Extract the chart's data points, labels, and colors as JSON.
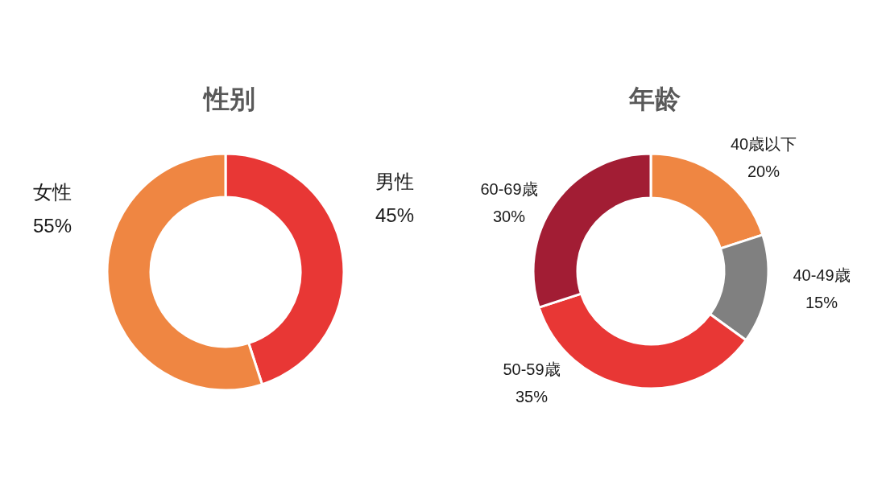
{
  "chart_data": [
    {
      "type": "donut",
      "title": "性别",
      "categories": [
        "男性",
        "女性"
      ],
      "values": [
        45,
        55
      ],
      "value_labels": [
        "45%",
        "55%"
      ],
      "colors": [
        "#e83735",
        "#ef8642"
      ],
      "legend": false
    },
    {
      "type": "donut",
      "title": "年龄",
      "categories": [
        "40歳以下",
        "40-49歳",
        "50-59歳",
        "60-69歳"
      ],
      "values": [
        20,
        15,
        35,
        30
      ],
      "value_labels": [
        "20%",
        "15%",
        "35%",
        "30%"
      ],
      "colors": [
        "#ef8642",
        "#808080",
        "#e83735",
        "#a21d34"
      ],
      "legend": false
    }
  ]
}
